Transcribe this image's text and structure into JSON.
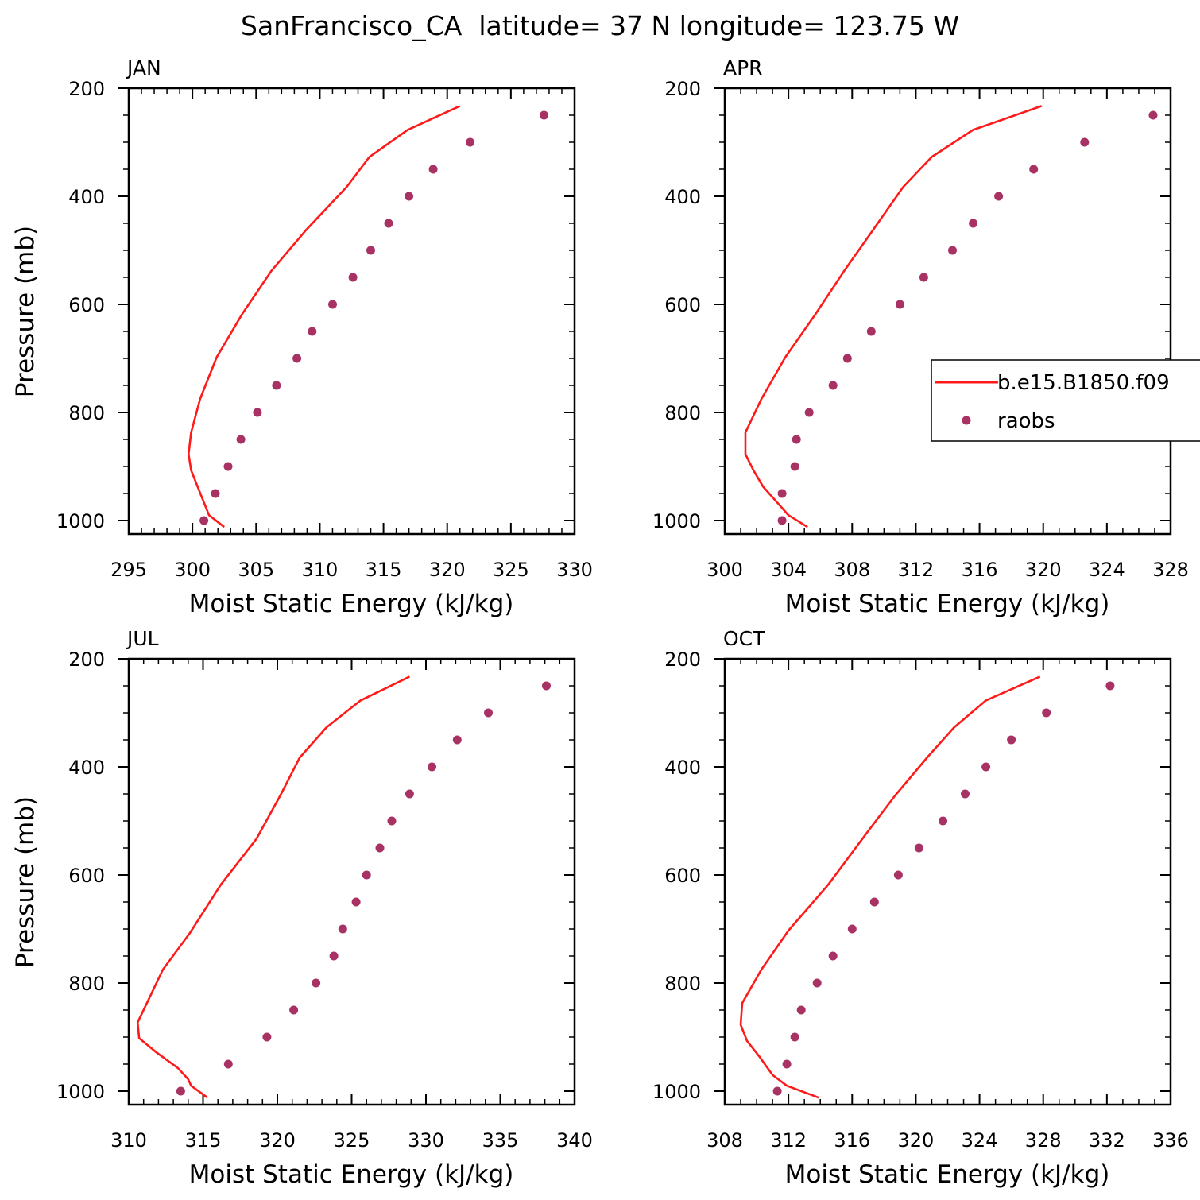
{
  "figure": {
    "title": "SanFrancisco_CA  latitude= 37 N longitude= 123.75 W"
  },
  "legend": {
    "model_label": "b.e15.B1850.f09",
    "obs_label": "raobs",
    "placement": "right-middle (inside APR panel)"
  },
  "colors": {
    "model_line": "#ff1a1a",
    "obs_marker": "#a83263",
    "axes": "#000000"
  },
  "chart_data": [
    {
      "type": "line",
      "panel": "JAN",
      "xlabel": "Moist Static Energy (kJ/kg)",
      "ylabel": "Pressure (mb)",
      "xlim": [
        295,
        330
      ],
      "ylim": [
        1025,
        200
      ],
      "y_ticks": [
        200,
        400,
        600,
        800,
        1000
      ],
      "x_ticks": [
        295,
        300,
        305,
        310,
        315,
        320,
        325,
        330
      ],
      "x_minor_step": 1,
      "y_minor_step": 50,
      "grid": false,
      "series": [
        {
          "name": "b.e15.B1850.f09",
          "kind": "line",
          "points": [
            [
              321.0,
              233
            ],
            [
              316.9,
              277
            ],
            [
              313.9,
              327
            ],
            [
              312.1,
              383
            ],
            [
              308.9,
              463
            ],
            [
              306.2,
              538
            ],
            [
              303.9,
              618
            ],
            [
              301.9,
              698
            ],
            [
              300.6,
              775
            ],
            [
              299.9,
              837
            ],
            [
              299.7,
              877
            ],
            [
              299.9,
              907
            ],
            [
              300.4,
              937
            ],
            [
              301.3,
              990
            ],
            [
              302.5,
              1012
            ]
          ]
        },
        {
          "name": "raobs",
          "kind": "scatter",
          "points": [
            [
              327.6,
              250
            ],
            [
              321.8,
              300
            ],
            [
              318.9,
              350
            ],
            [
              317.0,
              400
            ],
            [
              315.4,
              450
            ],
            [
              314.0,
              500
            ],
            [
              312.6,
              550
            ],
            [
              311.0,
              600
            ],
            [
              309.4,
              650
            ],
            [
              308.2,
              700
            ],
            [
              306.6,
              750
            ],
            [
              305.1,
              800
            ],
            [
              303.8,
              850
            ],
            [
              302.8,
              900
            ],
            [
              301.8,
              950
            ],
            [
              300.9,
              1000
            ]
          ]
        }
      ]
    },
    {
      "type": "line",
      "panel": "APR",
      "xlabel": "Moist Static Energy (kJ/kg)",
      "ylabel": "",
      "xlim": [
        300,
        328
      ],
      "ylim": [
        1025,
        200
      ],
      "y_ticks": [
        200,
        400,
        600,
        800,
        1000
      ],
      "x_ticks": [
        300,
        304,
        308,
        312,
        316,
        320,
        324,
        328
      ],
      "x_minor_step": 1,
      "y_minor_step": 50,
      "grid": false,
      "series": [
        {
          "name": "b.e15.B1850.f09",
          "kind": "line",
          "points": [
            [
              319.9,
              233
            ],
            [
              315.6,
              277
            ],
            [
              313.0,
              327
            ],
            [
              311.2,
              383
            ],
            [
              309.3,
              463
            ],
            [
              307.5,
              538
            ],
            [
              305.7,
              618
            ],
            [
              303.8,
              698
            ],
            [
              302.3,
              775
            ],
            [
              301.3,
              837
            ],
            [
              301.3,
              877
            ],
            [
              301.8,
              907
            ],
            [
              302.4,
              937
            ],
            [
              304.0,
              990
            ],
            [
              305.2,
              1012
            ]
          ]
        },
        {
          "name": "raobs",
          "kind": "scatter",
          "points": [
            [
              326.9,
              250
            ],
            [
              322.6,
              300
            ],
            [
              319.4,
              350
            ],
            [
              317.2,
              400
            ],
            [
              315.6,
              450
            ],
            [
              314.3,
              500
            ],
            [
              312.5,
              550
            ],
            [
              311.0,
              600
            ],
            [
              309.2,
              650
            ],
            [
              307.7,
              700
            ],
            [
              306.8,
              750
            ],
            [
              305.3,
              800
            ],
            [
              304.5,
              850
            ],
            [
              304.4,
              900
            ],
            [
              303.6,
              950
            ],
            [
              303.6,
              1000
            ]
          ]
        }
      ]
    },
    {
      "type": "line",
      "panel": "JUL",
      "xlabel": "Moist Static Energy (kJ/kg)",
      "ylabel": "Pressure (mb)",
      "xlim": [
        310,
        340
      ],
      "ylim": [
        1025,
        200
      ],
      "y_ticks": [
        200,
        400,
        600,
        800,
        1000
      ],
      "x_ticks": [
        310,
        315,
        320,
        325,
        330,
        335,
        340
      ],
      "x_minor_step": 1,
      "y_minor_step": 50,
      "grid": false,
      "series": [
        {
          "name": "b.e15.B1850.f09",
          "kind": "line",
          "points": [
            [
              328.9,
              233
            ],
            [
              325.6,
              277
            ],
            [
              323.3,
              327
            ],
            [
              321.5,
              383
            ],
            [
              320.2,
              453
            ],
            [
              318.6,
              533
            ],
            [
              316.2,
              618
            ],
            [
              314.1,
              708
            ],
            [
              312.3,
              775
            ],
            [
              310.6,
              873
            ],
            [
              310.7,
              902
            ],
            [
              311.8,
              927
            ],
            [
              313.3,
              957
            ],
            [
              314.0,
              978
            ],
            [
              314.2,
              990
            ],
            [
              315.3,
              1012
            ]
          ]
        },
        {
          "name": "raobs",
          "kind": "scatter",
          "points": [
            [
              338.1,
              250
            ],
            [
              334.2,
              300
            ],
            [
              332.1,
              350
            ],
            [
              330.4,
              400
            ],
            [
              328.9,
              450
            ],
            [
              327.7,
              500
            ],
            [
              326.9,
              550
            ],
            [
              326.0,
              600
            ],
            [
              325.3,
              650
            ],
            [
              324.4,
              700
            ],
            [
              323.8,
              750
            ],
            [
              322.6,
              800
            ],
            [
              321.1,
              850
            ],
            [
              319.3,
              900
            ],
            [
              316.7,
              950
            ],
            [
              313.5,
              1000
            ]
          ]
        }
      ]
    },
    {
      "type": "line",
      "panel": "OCT",
      "xlabel": "Moist Static Energy (kJ/kg)",
      "ylabel": "",
      "xlim": [
        308,
        336
      ],
      "ylim": [
        1025,
        200
      ],
      "y_ticks": [
        200,
        400,
        600,
        800,
        1000
      ],
      "x_ticks": [
        308,
        312,
        316,
        320,
        324,
        328,
        332,
        336
      ],
      "x_minor_step": 1,
      "y_minor_step": 50,
      "grid": false,
      "series": [
        {
          "name": "b.e15.B1850.f09",
          "kind": "line",
          "points": [
            [
              327.8,
              233
            ],
            [
              324.4,
              277
            ],
            [
              322.4,
              327
            ],
            [
              320.7,
              383
            ],
            [
              318.7,
              453
            ],
            [
              316.9,
              523
            ],
            [
              314.5,
              618
            ],
            [
              312.0,
              703
            ],
            [
              310.3,
              775
            ],
            [
              309.1,
              837
            ],
            [
              309.0,
              877
            ],
            [
              309.4,
              907
            ],
            [
              310.2,
              937
            ],
            [
              311.0,
              970
            ],
            [
              311.9,
              990
            ],
            [
              313.9,
              1012
            ]
          ]
        },
        {
          "name": "raobs",
          "kind": "scatter",
          "points": [
            [
              332.2,
              250
            ],
            [
              328.2,
              300
            ],
            [
              326.0,
              350
            ],
            [
              324.4,
              400
            ],
            [
              323.1,
              450
            ],
            [
              321.7,
              500
            ],
            [
              320.2,
              550
            ],
            [
              318.9,
              600
            ],
            [
              317.4,
              650
            ],
            [
              316.0,
              700
            ],
            [
              314.8,
              750
            ],
            [
              313.8,
              800
            ],
            [
              312.8,
              850
            ],
            [
              312.4,
              900
            ],
            [
              311.9,
              950
            ],
            [
              311.3,
              1000
            ]
          ]
        }
      ]
    }
  ]
}
